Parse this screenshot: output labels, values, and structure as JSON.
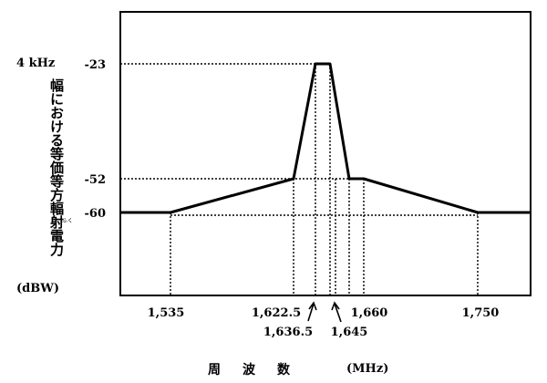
{
  "chart_data": {
    "type": "line",
    "ylabel_top": "4 kHz",
    "ylabel_main": "幅における等価等方輻射電力",
    "ylabel_ruby": "ふく",
    "ylabel_unit": "(dBW)",
    "xlabel": "周波数",
    "xunit": "(MHz)",
    "yticks": [
      {
        "value": -23,
        "label": "-23"
      },
      {
        "value": -52,
        "label": "-52"
      },
      {
        "value": -60,
        "label": "-60"
      }
    ],
    "xticks_upper": [
      {
        "value": 1535,
        "label": "1,535"
      },
      {
        "value": 1622.5,
        "label": "1,622.5"
      },
      {
        "value": 1660,
        "label": "1,660"
      },
      {
        "value": 1750,
        "label": "1,750"
      }
    ],
    "xticks_lower": [
      {
        "value": 1636.5,
        "label": "1,636.5"
      },
      {
        "value": 1645,
        "label": "1,645"
      }
    ],
    "series": [
      {
        "points": [
          {
            "x": 1522,
            "y": -60
          },
          {
            "x": 1535,
            "y": -60
          },
          {
            "x": 1622.5,
            "y": -52
          },
          {
            "x": 1628,
            "y": -23
          },
          {
            "x": 1633,
            "y": -23
          },
          {
            "x": 1636.5,
            "y": -52
          },
          {
            "x": 1660,
            "y": -52
          },
          {
            "x": 1750,
            "y": -60
          },
          {
            "x": 1764,
            "y": -60
          }
        ]
      }
    ],
    "guide_x": [
      1535,
      1622.5,
      1628,
      1633,
      1636.5,
      1645,
      1660,
      1750
    ],
    "grid": false
  }
}
